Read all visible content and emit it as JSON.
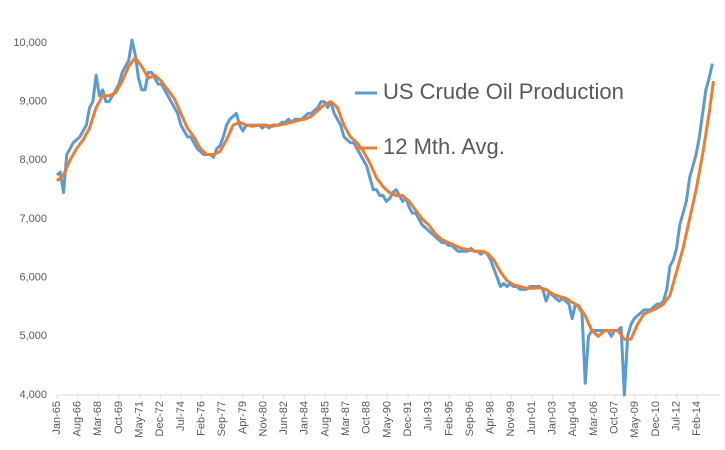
{
  "chart_data": {
    "type": "line",
    "xlim": [
      0,
      610
    ],
    "xticks": [
      {
        "value": 0,
        "label": "Jan-65"
      },
      {
        "value": 19,
        "label": "Aug-66"
      },
      {
        "value": 38,
        "label": "Mar-68"
      },
      {
        "value": 57,
        "label": "Oct-69"
      },
      {
        "value": 76,
        "label": "May-71"
      },
      {
        "value": 95,
        "label": "Dec-72"
      },
      {
        "value": 114,
        "label": "Jul-74"
      },
      {
        "value": 133,
        "label": "Feb-76"
      },
      {
        "value": 152,
        "label": "Sep-77"
      },
      {
        "value": 171,
        "label": "Apr-79"
      },
      {
        "value": 190,
        "label": "Nov-80"
      },
      {
        "value": 209,
        "label": "Jun-82"
      },
      {
        "value": 228,
        "label": "Jan-84"
      },
      {
        "value": 247,
        "label": "Aug-85"
      },
      {
        "value": 266,
        "label": "Mar-87"
      },
      {
        "value": 285,
        "label": "Oct-88"
      },
      {
        "value": 304,
        "label": "May-90"
      },
      {
        "value": 323,
        "label": "Dec-91"
      },
      {
        "value": 342,
        "label": "Jul-93"
      },
      {
        "value": 361,
        "label": "Feb-95"
      },
      {
        "value": 380,
        "label": "Sep-96"
      },
      {
        "value": 399,
        "label": "Apr-98"
      },
      {
        "value": 418,
        "label": "Nov-99"
      },
      {
        "value": 437,
        "label": "Jun-01"
      },
      {
        "value": 456,
        "label": "Jan-03"
      },
      {
        "value": 475,
        "label": "Aug-04"
      },
      {
        "value": 494,
        "label": "Mar-06"
      },
      {
        "value": 513,
        "label": "Oct-07"
      },
      {
        "value": 532,
        "label": "May-09"
      },
      {
        "value": 551,
        "label": "Dec-10"
      },
      {
        "value": 570,
        "label": "Jul-12"
      },
      {
        "value": 589,
        "label": "Feb-14"
      }
    ],
    "ylim": [
      4000,
      10000
    ],
    "yticks": [
      {
        "value": 4000,
        "label": "4,000"
      },
      {
        "value": 5000,
        "label": "5,000"
      },
      {
        "value": 6000,
        "label": "6,000"
      },
      {
        "value": 7000,
        "label": "7,000"
      },
      {
        "value": 8000,
        "label": "8,000"
      },
      {
        "value": 9000,
        "label": "9,000"
      },
      {
        "value": 10000,
        "label": "10,000"
      }
    ],
    "grid": false,
    "legend": "upper center",
    "series": [
      {
        "name": "US Crude Oil Production",
        "color": "#5b9bd5",
        "x": [
          0,
          3,
          6,
          9,
          12,
          15,
          18,
          21,
          24,
          27,
          30,
          33,
          36,
          39,
          42,
          45,
          48,
          51,
          54,
          57,
          60,
          63,
          66,
          69,
          72,
          75,
          78,
          81,
          84,
          87,
          90,
          93,
          96,
          99,
          102,
          105,
          108,
          111,
          114,
          117,
          120,
          123,
          126,
          129,
          132,
          135,
          138,
          141,
          144,
          147,
          150,
          153,
          156,
          159,
          162,
          165,
          168,
          171,
          174,
          177,
          180,
          183,
          186,
          189,
          192,
          195,
          198,
          201,
          204,
          207,
          210,
          213,
          216,
          219,
          222,
          225,
          228,
          231,
          234,
          237,
          240,
          243,
          246,
          249,
          252,
          255,
          258,
          261,
          264,
          267,
          270,
          273,
          276,
          279,
          282,
          285,
          288,
          291,
          294,
          297,
          300,
          303,
          306,
          309,
          312,
          315,
          318,
          321,
          324,
          327,
          330,
          333,
          336,
          339,
          342,
          345,
          348,
          351,
          354,
          357,
          360,
          363,
          366,
          369,
          372,
          375,
          378,
          381,
          384,
          387,
          390,
          393,
          396,
          399,
          402,
          405,
          408,
          411,
          414,
          417,
          420,
          423,
          426,
          429,
          432,
          435,
          438,
          441,
          444,
          447,
          450,
          453,
          456,
          459,
          462,
          465,
          468,
          471,
          474,
          477,
          480,
          483,
          486,
          489,
          492,
          495,
          498,
          501,
          504,
          507,
          510,
          513,
          516,
          519,
          522,
          525,
          528,
          531,
          534,
          537,
          540,
          543,
          546,
          549,
          552,
          555,
          558,
          561,
          564,
          567,
          570,
          573,
          576,
          579,
          582,
          585,
          588,
          591,
          594,
          597,
          600,
          603
        ],
        "values": [
          7750,
          7800,
          7450,
          8100,
          8200,
          8300,
          8350,
          8400,
          8500,
          8600,
          8900,
          9000,
          9450,
          9100,
          9200,
          9000,
          9000,
          9100,
          9200,
          9300,
          9500,
          9600,
          9700,
          10050,
          9800,
          9400,
          9200,
          9200,
          9500,
          9500,
          9400,
          9300,
          9300,
          9200,
          9100,
          9000,
          8900,
          8800,
          8600,
          8500,
          8400,
          8400,
          8300,
          8200,
          8150,
          8100,
          8100,
          8100,
          8050,
          8200,
          8250,
          8400,
          8600,
          8700,
          8750,
          8800,
          8600,
          8500,
          8600,
          8600,
          8600,
          8600,
          8600,
          8550,
          8600,
          8550,
          8600,
          8600,
          8600,
          8650,
          8650,
          8700,
          8650,
          8700,
          8700,
          8700,
          8750,
          8800,
          8800,
          8850,
          8900,
          9000,
          9000,
          8900,
          9000,
          8800,
          8700,
          8600,
          8400,
          8350,
          8300,
          8300,
          8200,
          8100,
          8000,
          7900,
          7700,
          7500,
          7500,
          7400,
          7400,
          7300,
          7350,
          7450,
          7500,
          7400,
          7300,
          7350,
          7200,
          7100,
          7100,
          7000,
          6900,
          6850,
          6800,
          6750,
          6700,
          6650,
          6600,
          6600,
          6550,
          6550,
          6500,
          6450,
          6450,
          6450,
          6450,
          6500,
          6450,
          6450,
          6400,
          6450,
          6400,
          6300,
          6150,
          6000,
          5850,
          5900,
          5850,
          5900,
          5850,
          5850,
          5800,
          5800,
          5800,
          5850,
          5850,
          5850,
          5850,
          5800,
          5600,
          5750,
          5700,
          5650,
          5600,
          5650,
          5600,
          5550,
          5300,
          5550,
          5500,
          5400,
          4200,
          5000,
          5100,
          5100,
          5100,
          5100,
          5100,
          5100,
          5000,
          5100,
          5100,
          5150,
          4000,
          5000,
          5200,
          5300,
          5350,
          5400,
          5450,
          5450,
          5450,
          5500,
          5550,
          5550,
          5600,
          5800,
          6200,
          6300,
          6500,
          6900,
          7100,
          7300,
          7700,
          7900,
          8100,
          8400,
          8800,
          9200,
          9400,
          9650
        ]
      },
      {
        "name": "12 Mth. Avg.",
        "color": "#ed7d31",
        "x": [
          0,
          6,
          12,
          18,
          24,
          30,
          36,
          42,
          48,
          54,
          60,
          66,
          72,
          78,
          84,
          90,
          96,
          102,
          108,
          114,
          120,
          126,
          132,
          138,
          144,
          150,
          156,
          162,
          168,
          174,
          180,
          186,
          192,
          198,
          204,
          210,
          216,
          222,
          228,
          234,
          240,
          246,
          252,
          258,
          264,
          270,
          276,
          282,
          288,
          294,
          300,
          306,
          312,
          318,
          324,
          330,
          336,
          342,
          348,
          354,
          360,
          366,
          372,
          378,
          384,
          390,
          396,
          402,
          408,
          414,
          420,
          426,
          432,
          438,
          444,
          450,
          456,
          462,
          468,
          474,
          480,
          486,
          492,
          498,
          504,
          510,
          516,
          522,
          528,
          534,
          540,
          546,
          552,
          558,
          564,
          570,
          576,
          582,
          588,
          594,
          600,
          604
        ],
        "values": [
          7650,
          7750,
          8000,
          8200,
          8350,
          8550,
          8900,
          9100,
          9100,
          9150,
          9350,
          9600,
          9750,
          9600,
          9400,
          9450,
          9350,
          9200,
          9050,
          8800,
          8550,
          8400,
          8200,
          8100,
          8100,
          8150,
          8350,
          8600,
          8650,
          8600,
          8580,
          8600,
          8600,
          8580,
          8600,
          8620,
          8650,
          8680,
          8700,
          8750,
          8850,
          8950,
          9000,
          8900,
          8600,
          8400,
          8300,
          8150,
          7950,
          7700,
          7550,
          7450,
          7400,
          7400,
          7300,
          7150,
          7000,
          6900,
          6750,
          6650,
          6600,
          6550,
          6500,
          6480,
          6450,
          6450,
          6420,
          6300,
          6100,
          5950,
          5880,
          5850,
          5820,
          5820,
          5830,
          5800,
          5720,
          5680,
          5650,
          5580,
          5520,
          5350,
          5100,
          5000,
          5100,
          5100,
          5100,
          4950,
          4950,
          5200,
          5380,
          5430,
          5480,
          5550,
          5700,
          6100,
          6500,
          7000,
          7500,
          8100,
          8800,
          9350
        ]
      }
    ]
  }
}
